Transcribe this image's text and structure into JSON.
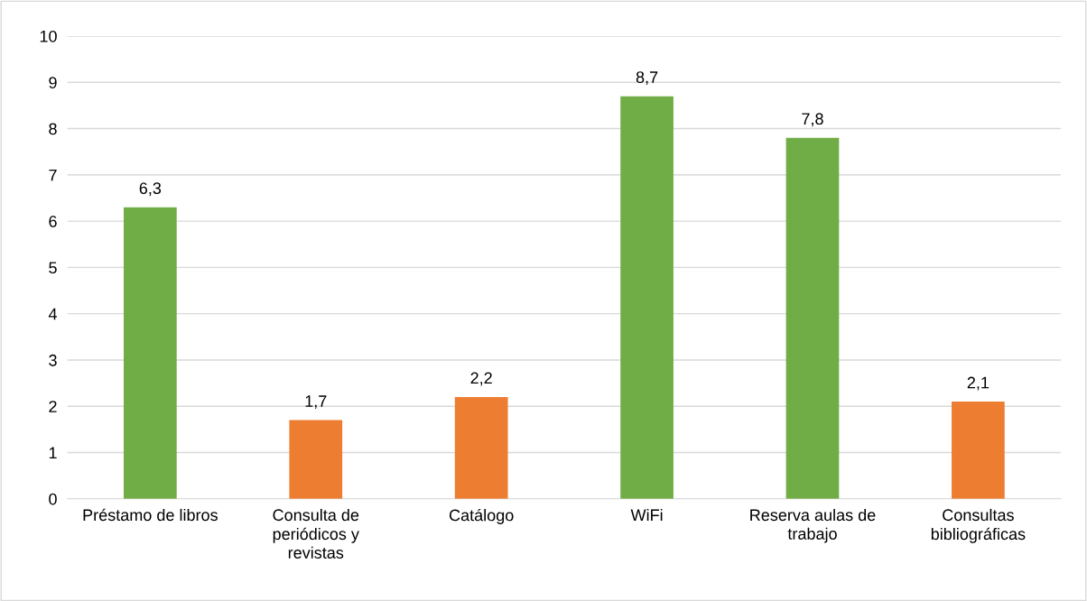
{
  "chart_data": {
    "type": "bar",
    "categories": [
      "Préstamo de libros",
      "Consulta de\nperiódicos y\nrevistas",
      "Catálogo",
      "WiFi",
      "Reserva aulas de\ntrabajo",
      "Consultas\nbibliográficas"
    ],
    "values": [
      6.3,
      1.7,
      2.2,
      8.7,
      7.8,
      2.1
    ],
    "colors": [
      "#70ad47",
      "#ed7d31",
      "#ed7d31",
      "#70ad47",
      "#70ad47",
      "#ed7d31"
    ],
    "value_labels": [
      "6,3",
      "1,7",
      "2,2",
      "8,7",
      "7,8",
      "2,1"
    ],
    "ylim": [
      0,
      10
    ],
    "yticks": [
      0,
      1,
      2,
      3,
      4,
      5,
      6,
      7,
      8,
      9,
      10
    ],
    "grid": "y",
    "legend": false
  }
}
